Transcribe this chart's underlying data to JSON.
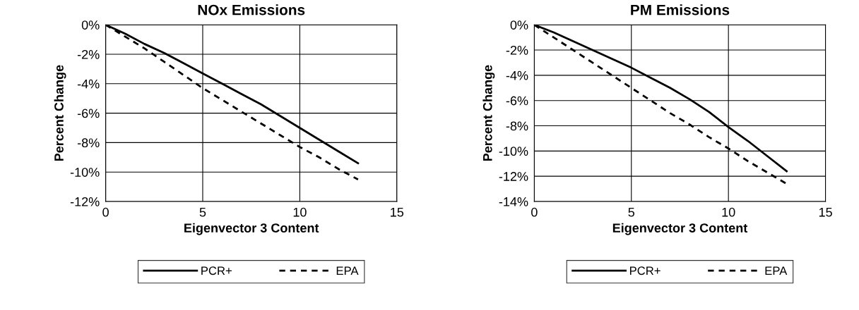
{
  "chart_data": [
    {
      "type": "line",
      "title": "NOx Emissions",
      "xlabel": "Eigenvector 3 Content",
      "ylabel": "Percent Change",
      "series": [
        {
          "name": "PCR+",
          "color": "#000000",
          "line_style": "solid",
          "x": [
            0,
            1,
            2,
            3,
            4,
            5,
            6,
            7,
            8,
            9,
            10,
            11,
            12,
            13
          ],
          "values": [
            0,
            -0.6,
            -1.3,
            -1.9,
            -2.6,
            -3.3,
            -4.0,
            -4.7,
            -5.4,
            -6.2,
            -7.0,
            -7.8,
            -8.6,
            -9.4
          ]
        },
        {
          "name": "EPA",
          "color": "#000000",
          "line_style": "dashed",
          "x": [
            0,
            1,
            2,
            3,
            4,
            5,
            6,
            7,
            8,
            9,
            10,
            11,
            12,
            13
          ],
          "values": [
            0,
            -0.8,
            -1.6,
            -2.5,
            -3.4,
            -4.3,
            -5.1,
            -5.9,
            -6.7,
            -7.5,
            -8.3,
            -9.0,
            -9.8,
            -10.5
          ]
        }
      ],
      "xlim": [
        0,
        15
      ],
      "xticks": [
        0,
        5,
        10,
        15
      ],
      "ylim": [
        -12,
        0
      ],
      "yticks": [
        {
          "value": -12,
          "label": "-12%"
        },
        {
          "value": -10,
          "label": "-10%"
        },
        {
          "value": -8,
          "label": "-8%"
        },
        {
          "value": -6,
          "label": "-6%"
        },
        {
          "value": -4,
          "label": "-4%"
        },
        {
          "value": -2,
          "label": "-2%"
        },
        {
          "value": 0,
          "label": "0%"
        }
      ],
      "grid": true,
      "legend": "bottom"
    },
    {
      "type": "line",
      "title": "PM Emissions",
      "xlabel": "Eigenvector 3 Content",
      "ylabel": "Percent Change",
      "series": [
        {
          "name": "PCR+",
          "color": "#000000",
          "line_style": "solid",
          "x": [
            0,
            1,
            2,
            3,
            4,
            5,
            6,
            7,
            8,
            9,
            10,
            11,
            12,
            13
          ],
          "values": [
            0,
            -0.6,
            -1.3,
            -2.0,
            -2.7,
            -3.4,
            -4.2,
            -5.0,
            -5.9,
            -6.9,
            -8.1,
            -9.2,
            -10.4,
            -11.6
          ]
        },
        {
          "name": "EPA",
          "color": "#000000",
          "line_style": "dashed",
          "x": [
            0,
            1,
            2,
            3,
            4,
            5,
            6,
            7,
            8,
            9,
            10,
            11,
            12,
            13
          ],
          "values": [
            0,
            -1.0,
            -2.0,
            -3.0,
            -4.0,
            -5.0,
            -6.0,
            -7.0,
            -7.9,
            -8.9,
            -9.8,
            -10.8,
            -11.7,
            -12.6
          ]
        }
      ],
      "xlim": [
        0,
        15
      ],
      "xticks": [
        0,
        5,
        10,
        15
      ],
      "ylim": [
        -14,
        0
      ],
      "yticks": [
        {
          "value": -14,
          "label": "-14%"
        },
        {
          "value": -12,
          "label": "-12%"
        },
        {
          "value": -10,
          "label": "-10%"
        },
        {
          "value": -8,
          "label": "-8%"
        },
        {
          "value": -6,
          "label": "-6%"
        },
        {
          "value": -4,
          "label": "-4%"
        },
        {
          "value": -2,
          "label": "-2%"
        },
        {
          "value": 0,
          "label": "0%"
        }
      ],
      "grid": true,
      "legend": "bottom"
    }
  ]
}
